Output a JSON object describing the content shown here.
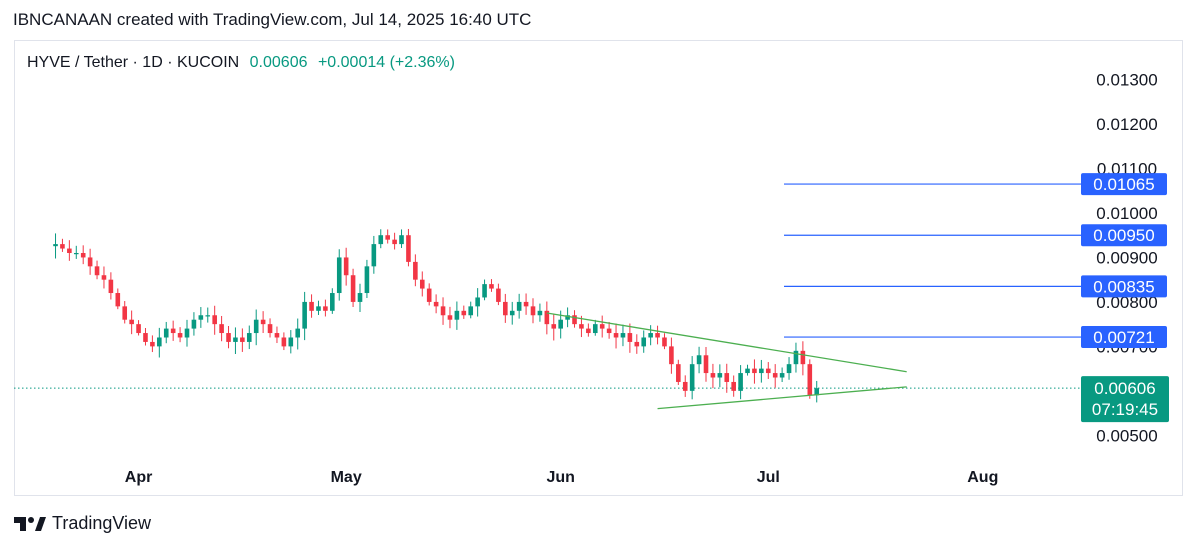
{
  "header": {
    "attribution": "IBNCANAAN created with TradingView.com, Jul 14, 2025 16:40 UTC"
  },
  "legend": {
    "symbol": "HYVE / Tether · 1D · KUCOIN",
    "last": "0.00606",
    "change": "+0.00014 (+2.36%)"
  },
  "footer": {
    "brand": "TradingView"
  },
  "colors": {
    "up": "#089981",
    "down": "#f23645",
    "level": "#2962ff",
    "trend": "#4caf50",
    "current": "#089981"
  },
  "chart_data": {
    "type": "candlestick",
    "symbol": "HYVE / Tether",
    "interval": "1D",
    "exchange": "KUCOIN",
    "x_axis_labels": [
      "Apr",
      "May",
      "Jun",
      "Jul",
      "Aug"
    ],
    "y_axis_labels": [
      "0.01300",
      "0.01200",
      "0.01100",
      "0.01000",
      "0.00900",
      "0.00800",
      "0.00700",
      "0.00500"
    ],
    "y_range": [
      0.0044,
      0.0138
    ],
    "horizontal_levels": [
      "0.01065",
      "0.00950",
      "0.00835",
      "0.00721"
    ],
    "current_price": {
      "value": "0.00606",
      "countdown": "07:19:45"
    },
    "trendlines": [
      {
        "from": [
          "2025-05-30",
          0.00775
        ],
        "to": [
          "2025-07-21",
          0.00643
        ]
      },
      {
        "from": [
          "2025-06-15",
          0.0056
        ],
        "to": [
          "2025-07-21",
          0.00609
        ]
      }
    ],
    "close_series": {
      "start_date": "2025-03-20",
      "closes": [
        0.0093,
        0.0092,
        0.0091,
        0.0091,
        0.009,
        0.0088,
        0.0086,
        0.0085,
        0.0082,
        0.0079,
        0.0076,
        0.0075,
        0.0073,
        0.0071,
        0.007,
        0.0072,
        0.0074,
        0.0073,
        0.0072,
        0.0074,
        0.0076,
        0.0077,
        0.0077,
        0.0075,
        0.0073,
        0.0071,
        0.0072,
        0.0071,
        0.0073,
        0.0076,
        0.0075,
        0.0073,
        0.0072,
        0.007,
        0.0072,
        0.0074,
        0.008,
        0.0078,
        0.0079,
        0.0078,
        0.0082,
        0.009,
        0.0086,
        0.008,
        0.0082,
        0.0088,
        0.0093,
        0.0095,
        0.0094,
        0.0093,
        0.0095,
        0.0089,
        0.0085,
        0.0083,
        0.008,
        0.0079,
        0.0077,
        0.0076,
        0.0078,
        0.0077,
        0.0079,
        0.0081,
        0.0084,
        0.0083,
        0.008,
        0.0077,
        0.0078,
        0.008,
        0.0079,
        0.0077,
        0.0078,
        0.0075,
        0.0074,
        0.0076,
        0.0077,
        0.0075,
        0.0074,
        0.0073,
        0.0075,
        0.0074,
        0.0073,
        0.0072,
        0.0073,
        0.0071,
        0.007,
        0.0072,
        0.0073,
        0.0072,
        0.007,
        0.0066,
        0.0062,
        0.006,
        0.0066,
        0.0068,
        0.0064,
        0.0063,
        0.0064,
        0.0062,
        0.006,
        0.0064,
        0.0065,
        0.0064,
        0.0065,
        0.0064,
        0.0063,
        0.0064,
        0.0066,
        0.0069,
        0.0066,
        0.0059,
        0.00606
      ]
    }
  }
}
